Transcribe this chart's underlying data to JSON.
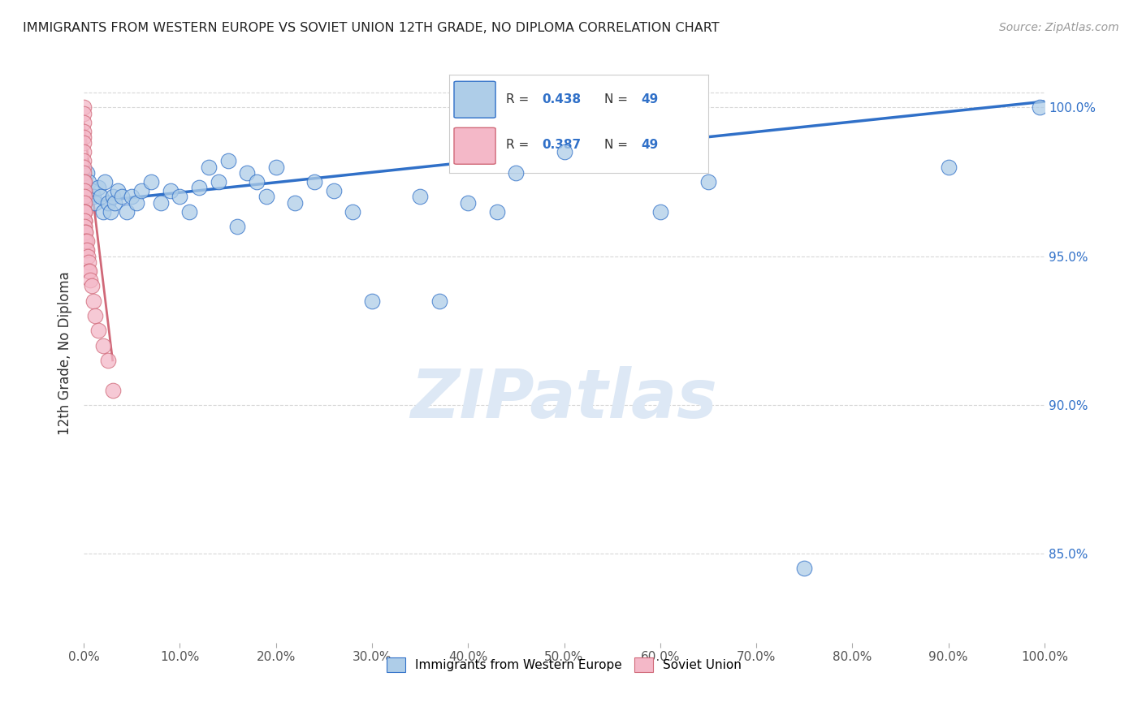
{
  "title": "IMMIGRANTS FROM WESTERN EUROPE VS SOVIET UNION 12TH GRADE, NO DIPLOMA CORRELATION CHART",
  "source": "Source: ZipAtlas.com",
  "ylabel": "12th Grade, No Diploma",
  "blue_label": "Immigrants from Western Europe",
  "pink_label": "Soviet Union",
  "R_blue": 0.438,
  "R_pink": 0.387,
  "N_blue": 49,
  "N_pink": 49,
  "xmin": 0.0,
  "xmax": 100.0,
  "ymin": 82.0,
  "ymax": 101.5,
  "right_yticks": [
    85.0,
    90.0,
    95.0,
    100.0
  ],
  "blue_color": "#aecde8",
  "pink_color": "#f4b8c8",
  "trend_blue": "#3070c8",
  "background": "#ffffff",
  "grid_color": "#d8d8d8",
  "blue_scatter_x": [
    0.3,
    0.5,
    0.8,
    1.0,
    1.2,
    1.5,
    1.8,
    2.0,
    2.2,
    2.5,
    2.8,
    3.0,
    3.2,
    3.5,
    4.0,
    4.5,
    5.0,
    5.5,
    6.0,
    7.0,
    8.0,
    9.0,
    10.0,
    11.0,
    12.0,
    13.0,
    14.0,
    15.0,
    16.0,
    17.0,
    18.0,
    19.0,
    20.0,
    22.0,
    24.0,
    26.0,
    28.0,
    30.0,
    35.0,
    37.0,
    40.0,
    43.0,
    45.0,
    50.0,
    60.0,
    65.0,
    75.0,
    90.0,
    99.5
  ],
  "blue_scatter_y": [
    97.8,
    97.5,
    97.2,
    97.0,
    96.8,
    97.3,
    97.0,
    96.5,
    97.5,
    96.8,
    96.5,
    97.0,
    96.8,
    97.2,
    97.0,
    96.5,
    97.0,
    96.8,
    97.2,
    97.5,
    96.8,
    97.2,
    97.0,
    96.5,
    97.3,
    98.0,
    97.5,
    98.2,
    96.0,
    97.8,
    97.5,
    97.0,
    98.0,
    96.8,
    97.5,
    97.2,
    96.5,
    93.5,
    97.0,
    93.5,
    96.8,
    96.5,
    97.8,
    98.5,
    96.5,
    97.5,
    84.5,
    98.0,
    100.0
  ],
  "pink_scatter_x": [
    0.0,
    0.0,
    0.0,
    0.0,
    0.0,
    0.0,
    0.0,
    0.0,
    0.0,
    0.0,
    0.0,
    0.0,
    0.0,
    0.0,
    0.0,
    0.0,
    0.0,
    0.0,
    0.05,
    0.05,
    0.05,
    0.05,
    0.05,
    0.05,
    0.08,
    0.08,
    0.08,
    0.1,
    0.1,
    0.1,
    0.15,
    0.15,
    0.2,
    0.2,
    0.25,
    0.3,
    0.3,
    0.4,
    0.5,
    0.5,
    0.6,
    0.7,
    0.8,
    1.0,
    1.2,
    1.5,
    2.0,
    2.5,
    3.0
  ],
  "pink_scatter_y": [
    100.0,
    99.8,
    99.5,
    99.2,
    99.0,
    98.8,
    98.5,
    98.2,
    98.0,
    97.8,
    97.5,
    97.2,
    97.0,
    96.8,
    96.5,
    96.2,
    95.8,
    95.5,
    97.5,
    97.2,
    97.0,
    96.8,
    96.5,
    96.2,
    96.5,
    96.2,
    96.0,
    96.5,
    96.2,
    96.0,
    95.8,
    95.5,
    95.8,
    95.5,
    95.2,
    95.5,
    95.2,
    95.0,
    94.8,
    94.5,
    94.5,
    94.2,
    94.0,
    93.5,
    93.0,
    92.5,
    92.0,
    91.5,
    90.5
  ],
  "trend_line_blue_x0": 0.0,
  "trend_line_blue_x1": 100.0,
  "trend_line_blue_y0": 96.8,
  "trend_line_blue_y1": 100.2,
  "trend_line_pink_x0": 0.0,
  "trend_line_pink_x1": 3.0,
  "trend_line_pink_y0": 99.5,
  "trend_line_pink_y1": 91.5
}
